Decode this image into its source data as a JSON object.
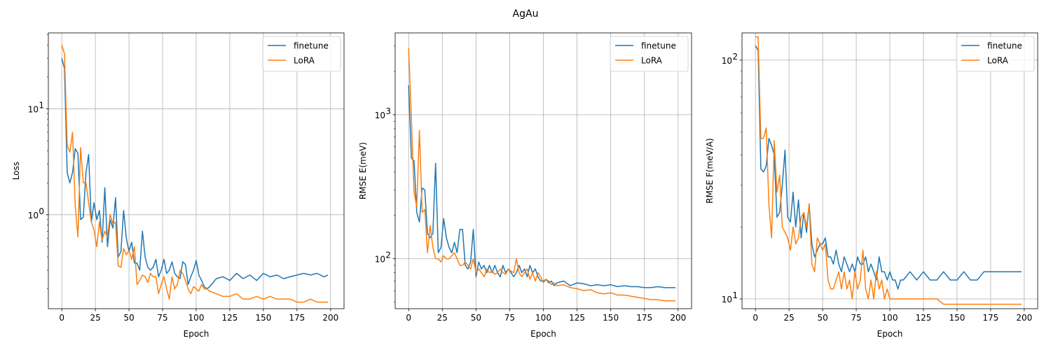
{
  "figure": {
    "title": "AgAu"
  },
  "colors": {
    "finetune": "#1f77b4",
    "lora": "#ff7f0e",
    "grid": "#b0b0b0",
    "axes": "#000000"
  },
  "chart_data": [
    {
      "type": "line",
      "yscale": "log",
      "xlabel": "Epoch",
      "ylabel": "Loss",
      "xlim": [
        -10,
        210
      ],
      "ylim": [
        0.13,
        52
      ],
      "xticks": [
        0,
        25,
        50,
        75,
        100,
        125,
        150,
        175,
        200
      ],
      "yticks": [
        {
          "value": 1,
          "label": "10",
          "sup": "0"
        },
        {
          "value": 10,
          "label": "10",
          "sup": "1"
        }
      ],
      "grid": true,
      "legend": "upper right",
      "series": [
        {
          "name": "finetune",
          "x": [
            0,
            2,
            4,
            6,
            8,
            10,
            12,
            14,
            16,
            18,
            20,
            22,
            24,
            26,
            28,
            30,
            32,
            34,
            36,
            38,
            40,
            42,
            44,
            46,
            48,
            50,
            52,
            54,
            56,
            58,
            60,
            62,
            64,
            66,
            68,
            70,
            72,
            74,
            76,
            78,
            80,
            82,
            84,
            86,
            88,
            90,
            92,
            94,
            96,
            98,
            100,
            102,
            104,
            106,
            108,
            110,
            115,
            120,
            125,
            130,
            135,
            140,
            145,
            150,
            155,
            160,
            165,
            170,
            175,
            180,
            185,
            190,
            195,
            198
          ],
          "y": [
            30,
            24,
            2.5,
            2.0,
            2.5,
            4.2,
            3.8,
            0.9,
            0.95,
            2.5,
            3.7,
            0.85,
            1.3,
            0.9,
            1.1,
            0.55,
            1.8,
            0.5,
            0.9,
            0.75,
            1.45,
            0.4,
            0.45,
            1.1,
            0.6,
            0.45,
            0.55,
            0.35,
            0.35,
            0.3,
            0.7,
            0.4,
            0.32,
            0.3,
            0.32,
            0.38,
            0.26,
            0.3,
            0.38,
            0.28,
            0.3,
            0.36,
            0.28,
            0.26,
            0.25,
            0.36,
            0.34,
            0.22,
            0.26,
            0.3,
            0.37,
            0.27,
            0.24,
            0.21,
            0.2,
            0.21,
            0.25,
            0.26,
            0.24,
            0.28,
            0.25,
            0.27,
            0.24,
            0.28,
            0.26,
            0.27,
            0.25,
            0.26,
            0.27,
            0.28,
            0.27,
            0.28,
            0.26,
            0.27
          ]
        },
        {
          "name": "LoRA",
          "x": [
            0,
            2,
            4,
            6,
            8,
            10,
            12,
            14,
            16,
            18,
            20,
            22,
            24,
            26,
            28,
            30,
            32,
            34,
            36,
            38,
            40,
            42,
            44,
            46,
            48,
            50,
            52,
            54,
            56,
            58,
            60,
            62,
            64,
            66,
            68,
            70,
            72,
            74,
            76,
            78,
            80,
            82,
            84,
            86,
            88,
            90,
            92,
            94,
            96,
            98,
            100,
            102,
            104,
            106,
            108,
            110,
            115,
            120,
            125,
            130,
            135,
            140,
            145,
            150,
            155,
            160,
            165,
            170,
            175,
            180,
            185,
            190,
            195,
            198
          ],
          "y": [
            40,
            33,
            4.5,
            3.9,
            6.0,
            1.2,
            0.62,
            4.3,
            2.0,
            2.0,
            1.3,
            0.85,
            0.72,
            0.5,
            0.85,
            0.58,
            0.7,
            0.62,
            1.0,
            0.82,
            0.85,
            0.33,
            0.32,
            0.48,
            0.42,
            0.46,
            0.38,
            0.5,
            0.22,
            0.24,
            0.27,
            0.26,
            0.23,
            0.28,
            0.26,
            0.26,
            0.18,
            0.22,
            0.26,
            0.2,
            0.16,
            0.26,
            0.2,
            0.22,
            0.3,
            0.28,
            0.24,
            0.2,
            0.18,
            0.21,
            0.2,
            0.19,
            0.22,
            0.2,
            0.2,
            0.19,
            0.18,
            0.17,
            0.17,
            0.18,
            0.16,
            0.16,
            0.17,
            0.16,
            0.17,
            0.16,
            0.16,
            0.16,
            0.15,
            0.15,
            0.16,
            0.15,
            0.15,
            0.15
          ]
        }
      ]
    },
    {
      "type": "line",
      "yscale": "log",
      "xlabel": "Epoch",
      "ylabel": "RMSE E(meV)",
      "xlim": [
        -10,
        210
      ],
      "ylim": [
        45,
        3700
      ],
      "xticks": [
        0,
        25,
        50,
        75,
        100,
        125,
        150,
        175,
        200
      ],
      "yticks": [
        {
          "value": 100,
          "label": "10",
          "sup": "2"
        },
        {
          "value": 1000,
          "label": "10",
          "sup": "3"
        }
      ],
      "grid": true,
      "legend": "upper right",
      "series": [
        {
          "name": "finetune",
          "x": [
            0,
            2,
            4,
            6,
            8,
            10,
            12,
            14,
            16,
            18,
            20,
            22,
            24,
            26,
            28,
            30,
            32,
            34,
            36,
            38,
            40,
            42,
            44,
            46,
            48,
            50,
            52,
            54,
            56,
            58,
            60,
            62,
            64,
            66,
            68,
            70,
            72,
            74,
            76,
            78,
            80,
            82,
            84,
            86,
            88,
            90,
            92,
            94,
            96,
            98,
            100,
            102,
            104,
            106,
            108,
            110,
            115,
            120,
            125,
            130,
            135,
            140,
            145,
            150,
            155,
            160,
            165,
            170,
            175,
            180,
            185,
            190,
            195,
            198
          ],
          "y": [
            1600,
            500,
            480,
            210,
            180,
            310,
            300,
            150,
            140,
            150,
            460,
            110,
            120,
            190,
            140,
            120,
            110,
            130,
            110,
            160,
            160,
            90,
            85,
            95,
            160,
            75,
            95,
            85,
            90,
            80,
            90,
            80,
            90,
            80,
            75,
            90,
            80,
            85,
            80,
            75,
            80,
            90,
            80,
            85,
            75,
            90,
            80,
            85,
            75,
            70,
            70,
            72,
            68,
            70,
            65,
            68,
            70,
            65,
            68,
            67,
            65,
            66,
            65,
            66,
            64,
            65,
            64,
            64,
            63,
            63,
            64,
            63,
            63,
            63
          ]
        },
        {
          "name": "LoRA",
          "x": [
            0,
            2,
            4,
            6,
            8,
            10,
            12,
            14,
            16,
            18,
            20,
            22,
            24,
            26,
            28,
            30,
            32,
            34,
            36,
            38,
            40,
            42,
            44,
            46,
            48,
            50,
            52,
            54,
            56,
            58,
            60,
            62,
            64,
            66,
            68,
            70,
            72,
            74,
            76,
            78,
            80,
            82,
            84,
            86,
            88,
            90,
            92,
            94,
            96,
            98,
            100,
            102,
            104,
            106,
            108,
            110,
            115,
            120,
            125,
            130,
            135,
            140,
            145,
            150,
            155,
            160,
            165,
            170,
            175,
            180,
            185,
            190,
            195,
            198
          ],
          "y": [
            2900,
            950,
            290,
            230,
            780,
            210,
            220,
            110,
            170,
            120,
            100,
            100,
            95,
            105,
            100,
            100,
            105,
            110,
            100,
            90,
            90,
            95,
            90,
            85,
            100,
            80,
            85,
            80,
            75,
            85,
            80,
            82,
            78,
            80,
            85,
            80,
            78,
            85,
            82,
            80,
            100,
            80,
            75,
            80,
            85,
            72,
            80,
            70,
            80,
            75,
            68,
            72,
            70,
            66,
            68,
            65,
            66,
            63,
            62,
            60,
            61,
            58,
            57,
            58,
            56,
            56,
            55,
            54,
            53,
            52,
            52,
            51,
            51,
            51
          ]
        }
      ]
    },
    {
      "type": "line",
      "yscale": "log",
      "xlabel": "Epoch",
      "ylabel": "RMSE F(meV/A)",
      "xlim": [
        -10,
        210
      ],
      "ylim": [
        9.1,
        130
      ],
      "xticks": [
        0,
        25,
        50,
        75,
        100,
        125,
        150,
        175,
        200
      ],
      "yticks": [
        {
          "value": 10,
          "label": "10",
          "sup": "1"
        },
        {
          "value": 100,
          "label": "10",
          "sup": "2"
        }
      ],
      "grid": true,
      "legend": "upper right",
      "series": [
        {
          "name": "finetune",
          "x": [
            0,
            2,
            4,
            6,
            8,
            10,
            12,
            14,
            16,
            18,
            20,
            22,
            24,
            26,
            28,
            30,
            32,
            34,
            36,
            38,
            40,
            42,
            44,
            46,
            48,
            50,
            52,
            54,
            56,
            58,
            60,
            62,
            64,
            66,
            68,
            70,
            72,
            74,
            76,
            78,
            80,
            82,
            84,
            86,
            88,
            90,
            92,
            94,
            96,
            98,
            100,
            102,
            104,
            106,
            108,
            110,
            115,
            120,
            125,
            130,
            135,
            140,
            145,
            150,
            155,
            160,
            165,
            170,
            175,
            180,
            185,
            190,
            195,
            198
          ],
          "y": [
            115,
            110,
            35,
            34,
            36,
            47,
            44,
            40,
            22,
            23,
            30,
            42,
            22,
            21,
            28,
            20,
            26,
            18,
            23,
            19,
            25,
            17,
            15,
            16,
            17,
            17,
            18,
            15,
            15,
            14,
            16,
            14,
            13,
            15,
            14,
            13,
            14,
            13,
            15,
            14,
            14,
            15,
            13,
            14,
            13,
            12,
            15,
            13,
            13,
            12,
            13,
            12,
            12,
            11,
            12,
            12,
            13,
            12,
            13,
            12,
            12,
            13,
            12,
            12,
            13,
            12,
            12,
            13,
            13,
            13,
            13,
            13,
            13,
            13
          ]
        },
        {
          "name": "LoRA",
          "x": [
            0,
            2,
            4,
            6,
            8,
            10,
            12,
            14,
            16,
            18,
            20,
            22,
            24,
            26,
            28,
            30,
            32,
            34,
            36,
            38,
            40,
            42,
            44,
            46,
            48,
            50,
            52,
            54,
            56,
            58,
            60,
            62,
            64,
            66,
            68,
            70,
            72,
            74,
            76,
            78,
            80,
            82,
            84,
            86,
            88,
            90,
            92,
            94,
            96,
            98,
            100,
            102,
            104,
            106,
            108,
            110,
            115,
            120,
            125,
            130,
            135,
            140,
            145,
            150,
            155,
            160,
            165,
            170,
            175,
            180,
            185,
            190,
            195,
            198
          ],
          "y": [
            125,
            125,
            47,
            47,
            52,
            25,
            18,
            46,
            28,
            33,
            20,
            19,
            18,
            16,
            20,
            17,
            18,
            22,
            23,
            20,
            25,
            14,
            13,
            18,
            17,
            16,
            17,
            12,
            11,
            11,
            12,
            13,
            11,
            13,
            11,
            12,
            10,
            13,
            11,
            12,
            16,
            11,
            10,
            12,
            10,
            13,
            11,
            12,
            10,
            11,
            10,
            10,
            10,
            10,
            10,
            10,
            10,
            10,
            10,
            10,
            10,
            9.5,
            9.5,
            9.5,
            9.5,
            9.5,
            9.5,
            9.5,
            9.5,
            9.5,
            9.5,
            9.5,
            9.5,
            9.5
          ]
        }
      ]
    }
  ]
}
